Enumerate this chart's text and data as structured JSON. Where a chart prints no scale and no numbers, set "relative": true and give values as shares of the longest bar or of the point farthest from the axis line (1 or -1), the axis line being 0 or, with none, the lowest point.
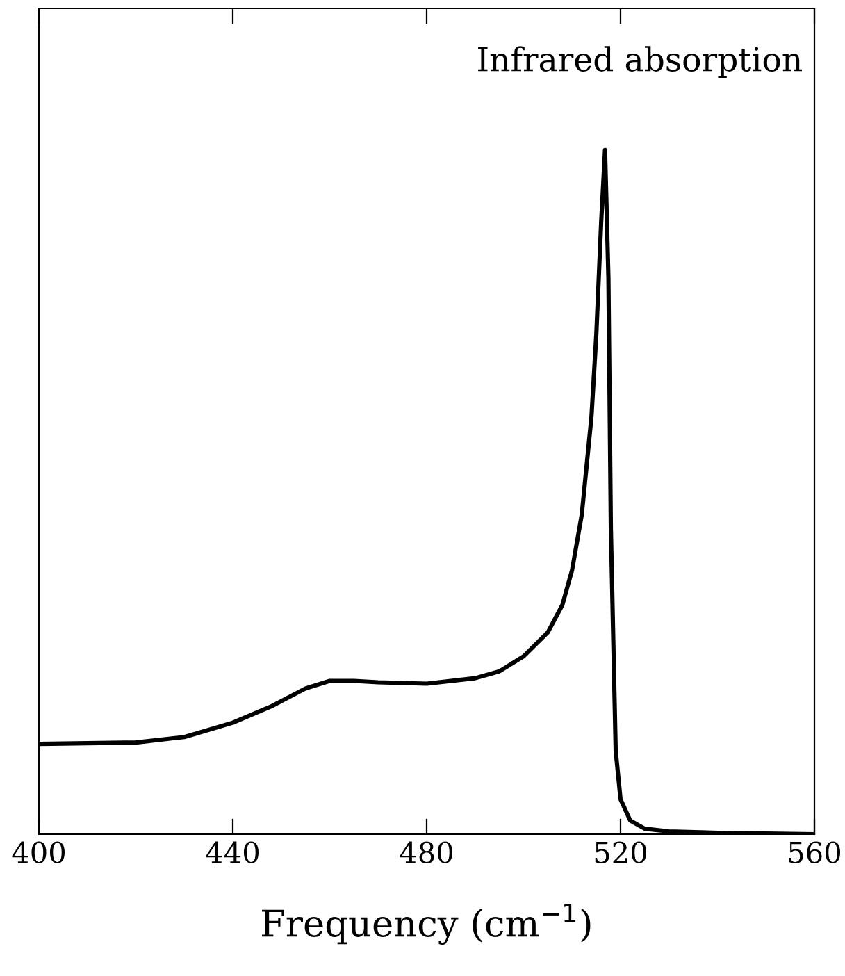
{
  "chart_data": {
    "type": "line",
    "relative": true,
    "xlabel": "Frequency (cm$^{−1}$)",
    "annotations": [
      "Infrared absorption"
    ],
    "xlim": [
      400,
      560
    ],
    "xticks": [
      400,
      440,
      480,
      520,
      560
    ],
    "tick_labels": "x",
    "grid": false,
    "legend": false,
    "marker": "none",
    "line_style": "solid",
    "series": [
      {
        "color": "#000000",
        "x": [
          400,
          420,
          430,
          440,
          448,
          455,
          460,
          465,
          470,
          480,
          490,
          495,
          500,
          505,
          508,
          510,
          512,
          514,
          515,
          516,
          516.8,
          517.5,
          518,
          519,
          520,
          522,
          525,
          530,
          540,
          560
        ],
        "values": [
          0.132,
          0.134,
          0.142,
          0.163,
          0.187,
          0.213,
          0.224,
          0.224,
          0.222,
          0.22,
          0.228,
          0.238,
          0.26,
          0.295,
          0.335,
          0.386,
          0.467,
          0.61,
          0.73,
          0.894,
          1.0,
          0.813,
          0.447,
          0.122,
          0.051,
          0.02,
          0.008,
          0.004,
          0.002,
          0
        ]
      }
    ]
  }
}
